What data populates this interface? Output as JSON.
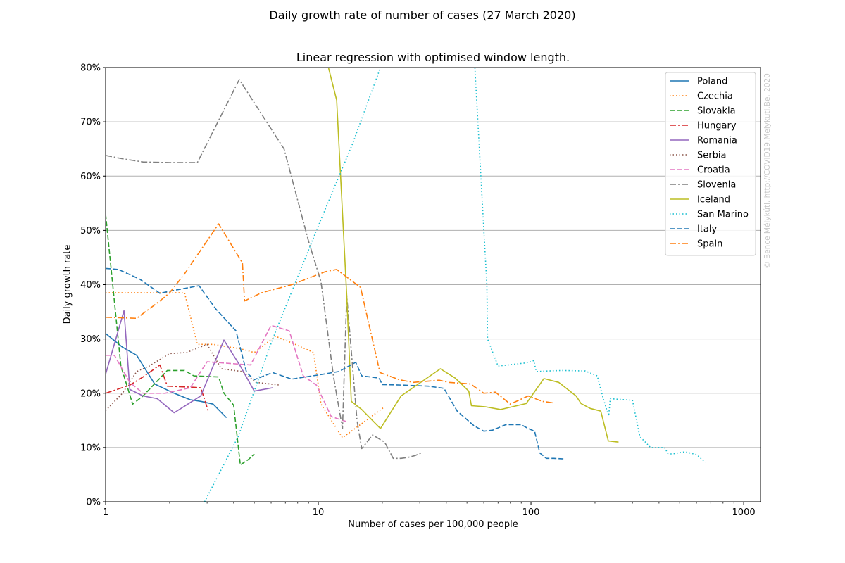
{
  "chart_data": {
    "type": "line",
    "suptitle": "Daily growth rate of number of cases (27 March 2020)",
    "title": "Linear regression with optimised window length.",
    "xlabel": "Number of cases per 100,000 people",
    "ylabel": "Daily growth rate",
    "xscale": "log",
    "xlim": [
      1,
      1200
    ],
    "ylim": [
      0,
      0.8
    ],
    "x_tick_labels": [
      {
        "value": 1,
        "label": "1"
      },
      {
        "value": 10,
        "label": "10"
      },
      {
        "value": 100,
        "label": "100"
      },
      {
        "value": 1000,
        "label": "1000"
      }
    ],
    "y_tick_labels": [
      {
        "value": 0,
        "label": "0%"
      },
      {
        "value": 0.1,
        "label": "10%"
      },
      {
        "value": 0.2,
        "label": "20%"
      },
      {
        "value": 0.3,
        "label": "30%"
      },
      {
        "value": 0.4,
        "label": "40%"
      },
      {
        "value": 0.5,
        "label": "50%"
      },
      {
        "value": 0.6,
        "label": "60%"
      },
      {
        "value": 0.7,
        "label": "70%"
      },
      {
        "value": 0.8,
        "label": "80%"
      }
    ],
    "grid": "horizontal",
    "legend_position": "top-right",
    "watermark": "© Bence Mélykúti, http://COVID19.Melykuti.Be, 2020",
    "series": [
      {
        "name": "Poland",
        "color": "#1f77b4",
        "dash": "solid",
        "points": [
          [
            1.0,
            0.31
          ],
          [
            1.2,
            0.285
          ],
          [
            1.4,
            0.27
          ],
          [
            1.7,
            0.217
          ],
          [
            2.1,
            0.2
          ],
          [
            2.5,
            0.188
          ],
          [
            2.8,
            0.185
          ],
          [
            3.2,
            0.18
          ],
          [
            3.7,
            0.155
          ]
        ]
      },
      {
        "name": "Czechia",
        "color": "#ff7f0e",
        "dash": "dotted",
        "points": [
          [
            1.0,
            0.385
          ],
          [
            1.6,
            0.385
          ],
          [
            2.35,
            0.385
          ],
          [
            2.7,
            0.29
          ],
          [
            3.2,
            0.29
          ],
          [
            4.3,
            0.282
          ],
          [
            5.0,
            0.275
          ],
          [
            6.3,
            0.305
          ],
          [
            7.8,
            0.29
          ],
          [
            9.5,
            0.275
          ],
          [
            10.3,
            0.18
          ],
          [
            13.0,
            0.118
          ],
          [
            15.5,
            0.14
          ],
          [
            20.5,
            0.175
          ]
        ]
      },
      {
        "name": "Slovakia",
        "color": "#2ca02c",
        "dash": "dashed",
        "points": [
          [
            1.0,
            0.53
          ],
          [
            1.18,
            0.25
          ],
          [
            1.34,
            0.18
          ],
          [
            1.5,
            0.195
          ],
          [
            1.95,
            0.242
          ],
          [
            2.35,
            0.242
          ],
          [
            2.6,
            0.232
          ],
          [
            3.4,
            0.23
          ],
          [
            3.6,
            0.2
          ],
          [
            4.0,
            0.178
          ],
          [
            4.3,
            0.068
          ],
          [
            4.7,
            0.078
          ],
          [
            5.0,
            0.088
          ]
        ]
      },
      {
        "name": "Hungary",
        "color": "#d62728",
        "dash": "dashdot",
        "points": [
          [
            1.0,
            0.2
          ],
          [
            1.3,
            0.215
          ],
          [
            1.5,
            0.23
          ],
          [
            1.8,
            0.252
          ],
          [
            1.95,
            0.213
          ],
          [
            2.6,
            0.211
          ],
          [
            2.8,
            0.21
          ],
          [
            3.05,
            0.165
          ]
        ]
      },
      {
        "name": "Romania",
        "color": "#9467bd",
        "dash": "solid",
        "points": [
          [
            1.0,
            0.235
          ],
          [
            1.22,
            0.352
          ],
          [
            1.3,
            0.207
          ],
          [
            1.5,
            0.195
          ],
          [
            1.75,
            0.19
          ],
          [
            2.1,
            0.164
          ],
          [
            2.8,
            0.195
          ],
          [
            3.6,
            0.298
          ],
          [
            4.3,
            0.25
          ],
          [
            5.0,
            0.204
          ],
          [
            6.1,
            0.21
          ]
        ]
      },
      {
        "name": "Serbia",
        "color": "#8c564b",
        "dash": "dotted",
        "points": [
          [
            1.0,
            0.168
          ],
          [
            1.2,
            0.2
          ],
          [
            1.4,
            0.24
          ],
          [
            1.6,
            0.25
          ],
          [
            2.0,
            0.273
          ],
          [
            2.4,
            0.275
          ],
          [
            3.0,
            0.29
          ],
          [
            3.5,
            0.245
          ],
          [
            4.4,
            0.24
          ],
          [
            5.1,
            0.22
          ],
          [
            6.6,
            0.215
          ]
        ]
      },
      {
        "name": "Croatia",
        "color": "#e377c2",
        "dash": "dashed",
        "points": [
          [
            1.0,
            0.27
          ],
          [
            1.1,
            0.27
          ],
          [
            1.3,
            0.22
          ],
          [
            1.5,
            0.2
          ],
          [
            1.9,
            0.2
          ],
          [
            2.5,
            0.21
          ],
          [
            3.0,
            0.258
          ],
          [
            4.8,
            0.252
          ],
          [
            6.0,
            0.325
          ],
          [
            7.3,
            0.315
          ],
          [
            8.5,
            0.232
          ],
          [
            9.8,
            0.215
          ],
          [
            11.5,
            0.157
          ],
          [
            13.5,
            0.148
          ]
        ]
      },
      {
        "name": "Slovenia",
        "color": "#7f7f7f",
        "dash": "dashdot",
        "points": [
          [
            1.0,
            0.638
          ],
          [
            1.2,
            0.632
          ],
          [
            1.5,
            0.626
          ],
          [
            2.0,
            0.625
          ],
          [
            2.7,
            0.625
          ],
          [
            4.25,
            0.778
          ],
          [
            6.9,
            0.65
          ],
          [
            9.0,
            0.48
          ],
          [
            10.3,
            0.405
          ],
          [
            11.8,
            0.23
          ],
          [
            13.0,
            0.135
          ],
          [
            13.6,
            0.38
          ],
          [
            15.2,
            0.15
          ],
          [
            16.0,
            0.098
          ],
          [
            18.0,
            0.123
          ],
          [
            20.5,
            0.11
          ],
          [
            22.5,
            0.08
          ],
          [
            24.5,
            0.08
          ],
          [
            26.5,
            0.082
          ],
          [
            28.5,
            0.085
          ],
          [
            30.5,
            0.09
          ]
        ]
      },
      {
        "name": "Iceland",
        "color": "#bcbd22",
        "dash": "solid",
        "points": [
          [
            11.0,
            0.81
          ],
          [
            12.2,
            0.74
          ],
          [
            13.6,
            0.38
          ],
          [
            14.3,
            0.185
          ],
          [
            16.0,
            0.17
          ],
          [
            19.6,
            0.135
          ],
          [
            24.5,
            0.195
          ],
          [
            37.5,
            0.245
          ],
          [
            44.0,
            0.228
          ],
          [
            51.0,
            0.204
          ],
          [
            52.5,
            0.177
          ],
          [
            61.0,
            0.175
          ],
          [
            72.0,
            0.17
          ],
          [
            95.0,
            0.181
          ],
          [
            115.0,
            0.227
          ],
          [
            135.0,
            0.22
          ],
          [
            163.0,
            0.195
          ],
          [
            172.0,
            0.181
          ],
          [
            190.0,
            0.172
          ],
          [
            213.0,
            0.167
          ],
          [
            231.0,
            0.112
          ],
          [
            258.0,
            0.11
          ]
        ]
      },
      {
        "name": "San Marino",
        "color": "#17becf",
        "dash": "dotted",
        "points": [
          [
            2.92,
            0.0
          ],
          [
            4.2,
            0.12
          ],
          [
            6.1,
            0.3
          ],
          [
            9.8,
            0.5
          ],
          [
            14.5,
            0.66
          ],
          [
            19.6,
            0.8
          ],
          [
            20.0,
            0.81
          ],
          [
            52.0,
            0.81
          ],
          [
            54.5,
            0.8
          ],
          [
            62.0,
            0.4
          ],
          [
            62.5,
            0.3
          ],
          [
            70.0,
            0.25
          ],
          [
            95.0,
            0.256
          ],
          [
            103.0,
            0.26
          ],
          [
            106.0,
            0.24
          ],
          [
            120.0,
            0.241
          ],
          [
            140.0,
            0.242
          ],
          [
            180.0,
            0.241
          ],
          [
            205.0,
            0.232
          ],
          [
            218.0,
            0.192
          ],
          [
            232.0,
            0.158
          ],
          [
            236.0,
            0.19
          ],
          [
            300.0,
            0.187
          ],
          [
            325.0,
            0.12
          ],
          [
            345.0,
            0.11
          ],
          [
            365.0,
            0.1
          ],
          [
            425.0,
            0.1
          ],
          [
            440.0,
            0.089
          ],
          [
            460.0,
            0.088
          ],
          [
            530.0,
            0.092
          ],
          [
            600.0,
            0.087
          ],
          [
            660.0,
            0.073
          ]
        ]
      },
      {
        "name": "Italy",
        "color": "#1f77b4",
        "dash": "dashed",
        "points": [
          [
            1.0,
            0.43
          ],
          [
            1.15,
            0.428
          ],
          [
            1.45,
            0.41
          ],
          [
            1.8,
            0.384
          ],
          [
            2.0,
            0.388
          ],
          [
            2.75,
            0.398
          ],
          [
            3.3,
            0.355
          ],
          [
            4.1,
            0.315
          ],
          [
            4.6,
            0.238
          ],
          [
            5.0,
            0.225
          ],
          [
            6.1,
            0.238
          ],
          [
            7.5,
            0.226
          ],
          [
            10.5,
            0.235
          ],
          [
            12.5,
            0.24
          ],
          [
            15.0,
            0.257
          ],
          [
            16.0,
            0.232
          ],
          [
            19.3,
            0.228
          ],
          [
            20.0,
            0.216
          ],
          [
            25.0,
            0.215
          ],
          [
            33.0,
            0.213
          ],
          [
            39.0,
            0.209
          ],
          [
            45.0,
            0.167
          ],
          [
            54.0,
            0.14
          ],
          [
            60.0,
            0.13
          ],
          [
            66.0,
            0.132
          ],
          [
            76.0,
            0.142
          ],
          [
            90.0,
            0.142
          ],
          [
            97.0,
            0.135
          ],
          [
            104.0,
            0.13
          ],
          [
            110.0,
            0.09
          ],
          [
            118.0,
            0.08
          ],
          [
            128.0,
            0.08
          ],
          [
            142.0,
            0.079
          ]
        ]
      },
      {
        "name": "Spain",
        "color": "#ff7f0e",
        "dash": "dashdot",
        "points": [
          [
            1.0,
            0.34
          ],
          [
            1.4,
            0.338
          ],
          [
            1.8,
            0.37
          ],
          [
            2.0,
            0.385
          ],
          [
            2.35,
            0.42
          ],
          [
            3.4,
            0.512
          ],
          [
            4.4,
            0.44
          ],
          [
            4.5,
            0.37
          ],
          [
            5.4,
            0.385
          ],
          [
            7.5,
            0.4
          ],
          [
            10.8,
            0.424
          ],
          [
            12.2,
            0.428
          ],
          [
            15.8,
            0.395
          ],
          [
            19.5,
            0.238
          ],
          [
            24.0,
            0.225
          ],
          [
            28.0,
            0.22
          ],
          [
            37.0,
            0.224
          ],
          [
            41.0,
            0.22
          ],
          [
            52.0,
            0.217
          ],
          [
            60.0,
            0.2
          ],
          [
            68.0,
            0.202
          ],
          [
            80.0,
            0.18
          ],
          [
            97.0,
            0.195
          ],
          [
            113.0,
            0.185
          ],
          [
            128.0,
            0.182
          ]
        ]
      }
    ]
  }
}
